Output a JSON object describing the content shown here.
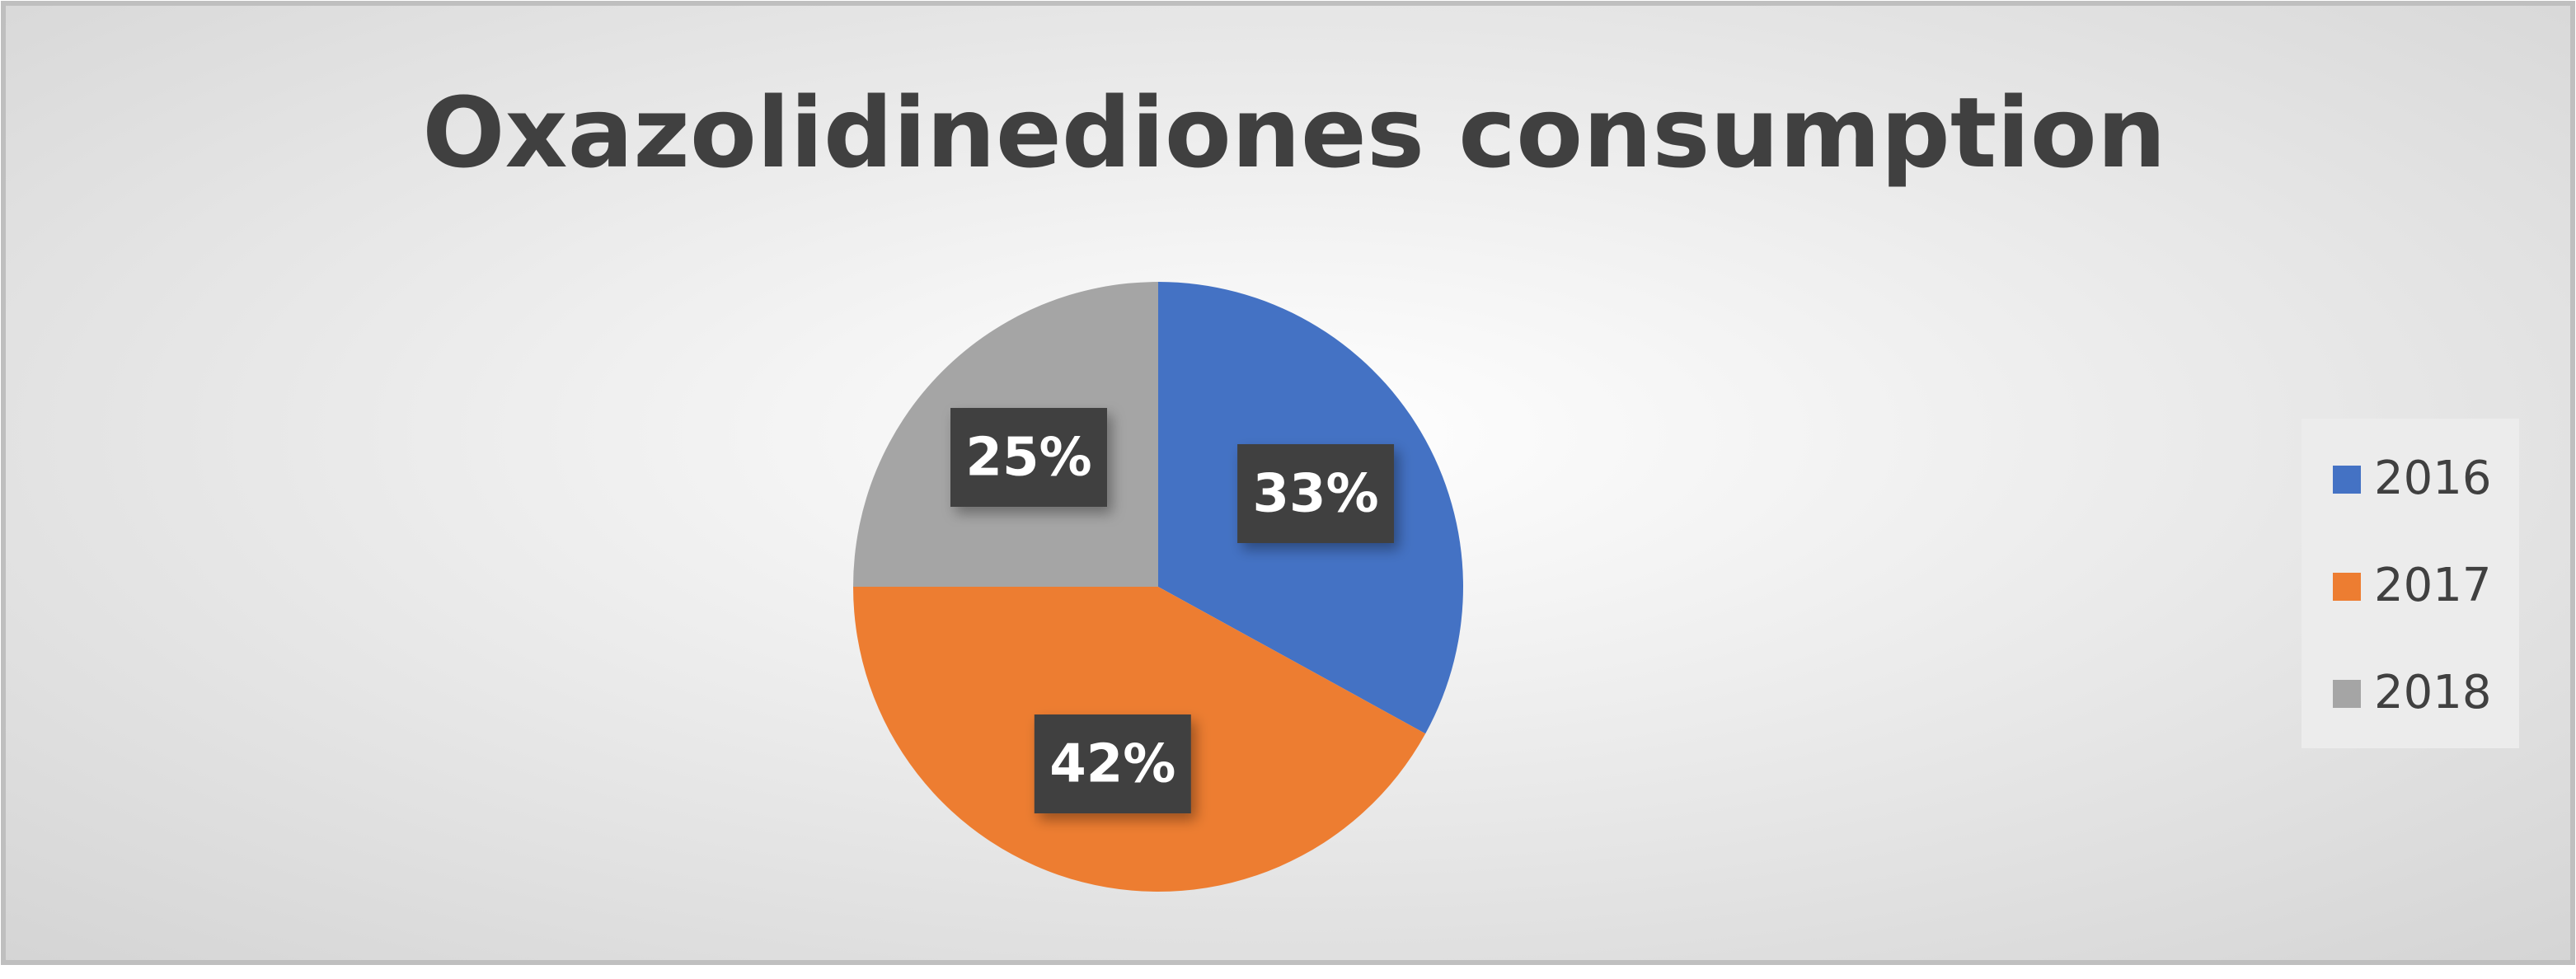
{
  "chart_data": {
    "type": "pie",
    "title": "Oxazolidinediones consumption",
    "categories": [
      "2016",
      "2017",
      "2018"
    ],
    "values": [
      33,
      42,
      25
    ],
    "value_labels": [
      "33%",
      "42%",
      "25%"
    ],
    "colors": [
      "#4472c4",
      "#ed7d31",
      "#a5a5a5"
    ],
    "legend": "right"
  }
}
